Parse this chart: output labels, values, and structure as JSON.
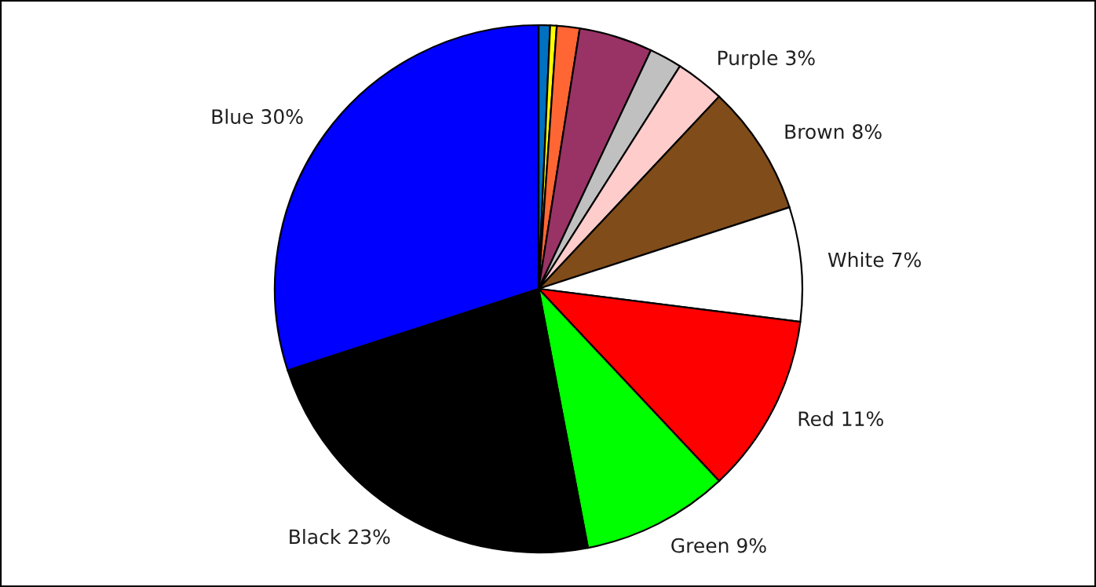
{
  "chart_data": {
    "type": "pie",
    "categories": [
      null,
      null,
      null,
      null,
      null,
      "Purple",
      "Brown",
      "White",
      "Red",
      "Green",
      "Black",
      "Blue"
    ],
    "values": [
      0.7,
      0.4,
      1.4,
      4.5,
      2,
      3,
      8,
      7,
      11,
      9,
      23,
      30
    ],
    "value_labels": [
      null,
      null,
      null,
      null,
      null,
      "3%",
      "8%",
      "7%",
      "11%",
      "9%",
      "23%",
      "30%"
    ],
    "colors": [
      "#0070c0",
      "#ffff00",
      "#ff6633",
      "#993366",
      "#c0c0c0",
      "#ffcccc",
      "#804c19",
      "#ffffff",
      "#ff0000",
      "#00ff00",
      "#000000",
      "#0000ff"
    ],
    "legend": false
  }
}
